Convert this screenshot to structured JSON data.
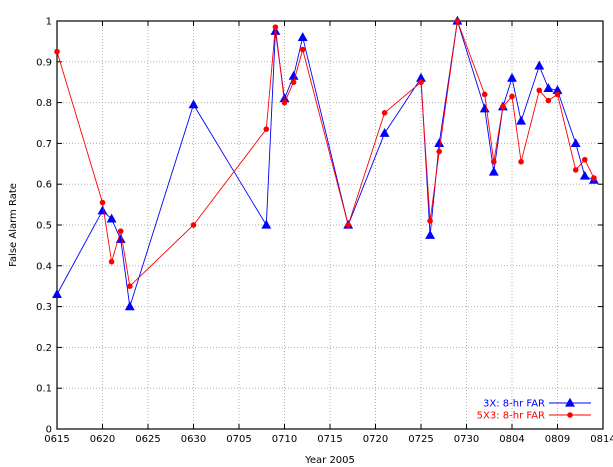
{
  "chart_data": {
    "type": "line",
    "xlabel": "Year  2005",
    "ylabel": "False Alarm Rate",
    "ylim": [
      0,
      1
    ],
    "grid": true,
    "legend_position": "bottom-right",
    "x_ticks": [
      "0615",
      "0620",
      "0625",
      "0630",
      "0705",
      "0710",
      "0715",
      "0720",
      "0725",
      "0730",
      "0804",
      "0809",
      "0814"
    ],
    "y_ticks": [
      "0",
      "0.1",
      "0.2",
      "0.3",
      "0.4",
      "0.5",
      "0.6",
      "0.7",
      "0.8",
      "0.9",
      "1"
    ],
    "series": [
      {
        "name": "3X: 8-hr FAR",
        "color": "#0000ff",
        "marker": "triangle",
        "x": [
          "06-15",
          "06-20",
          "06-21",
          "06-22",
          "06-23",
          "06-30",
          "07-08",
          "07-09",
          "07-10",
          "07-11",
          "07-12",
          "07-17",
          "07-21",
          "07-25",
          "07-26",
          "07-27",
          "07-29",
          "08-01",
          "08-02",
          "08-03",
          "08-04",
          "08-05",
          "08-07",
          "08-08",
          "08-09",
          "08-11",
          "08-12",
          "08-13"
        ],
        "values": [
          0.33,
          0.535,
          0.515,
          0.465,
          0.3,
          0.795,
          0.5,
          0.975,
          0.81,
          0.865,
          0.96,
          0.5,
          0.725,
          0.86,
          0.475,
          0.7,
          1.0,
          0.785,
          0.63,
          0.79,
          0.86,
          0.755,
          0.89,
          0.835,
          0.83,
          0.7,
          0.62,
          0.61
        ]
      },
      {
        "name": "5X3: 8-hr FAR",
        "color": "#ff0000",
        "marker": "circle",
        "x": [
          "06-15",
          "06-20",
          "06-21",
          "06-22",
          "06-23",
          "06-30",
          "07-08",
          "07-09",
          "07-10",
          "07-11",
          "07-12",
          "07-17",
          "07-21",
          "07-25",
          "07-26",
          "07-27",
          "07-29",
          "08-01",
          "08-02",
          "08-03",
          "08-04",
          "08-05",
          "08-07",
          "08-08",
          "08-09",
          "08-11",
          "08-12",
          "08-13"
        ],
        "values": [
          0.925,
          0.555,
          0.41,
          0.485,
          0.35,
          0.5,
          0.735,
          0.985,
          0.8,
          0.85,
          0.93,
          0.5,
          0.775,
          0.85,
          0.51,
          0.68,
          1.0,
          0.82,
          0.655,
          0.79,
          0.815,
          0.655,
          0.83,
          0.805,
          0.82,
          0.635,
          0.66,
          0.615
        ]
      }
    ]
  }
}
